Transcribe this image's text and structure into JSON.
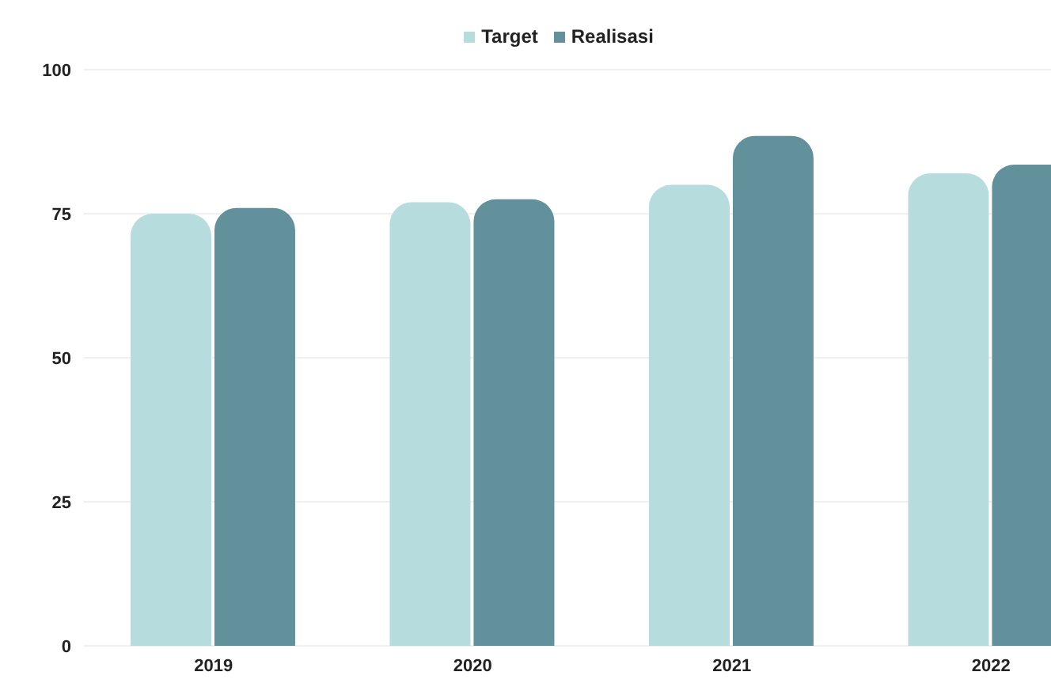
{
  "chart_data": {
    "type": "bar",
    "categories": [
      "2019",
      "2020",
      "2021",
      "2022"
    ],
    "series": [
      {
        "name": "Target",
        "color": "#b6dcdd",
        "values": [
          75,
          77,
          80,
          82
        ]
      },
      {
        "name": "Realisasi",
        "color": "#62919c",
        "values": [
          76,
          77.5,
          88.5,
          83.5
        ]
      }
    ],
    "ylim": [
      0,
      100
    ],
    "yticks": [
      0,
      25,
      50,
      75,
      100
    ],
    "grid": "y",
    "legend": "top"
  }
}
